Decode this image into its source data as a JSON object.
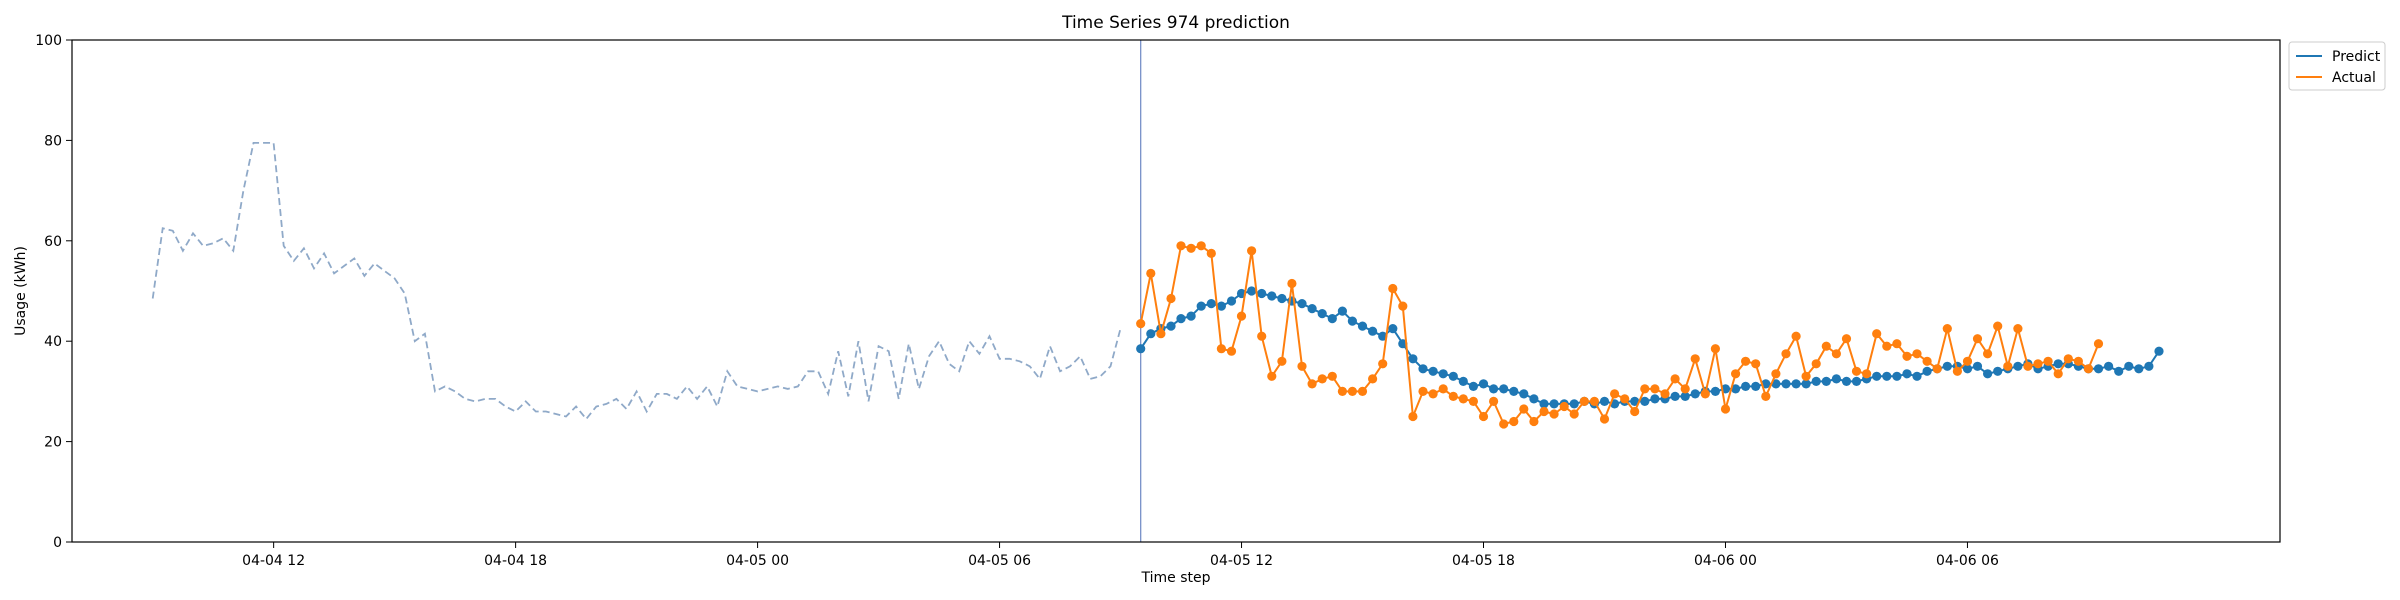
{
  "chart_data": {
    "type": "line",
    "title": "Time Series 974 prediction",
    "xlabel": "Time step",
    "ylabel": "Usage (kWh)",
    "ylim": [
      0,
      100
    ],
    "yticks": [
      0,
      20,
      40,
      60,
      80,
      100
    ],
    "xlim": [
      "2024-04-04 07:00",
      "2024-04-06 13:45"
    ],
    "xticks": [
      {
        "t": "2024-04-04 12:00",
        "label": "04-04 12"
      },
      {
        "t": "2024-04-04 18:00",
        "label": "04-04 18"
      },
      {
        "t": "2024-04-05 00:00",
        "label": "04-05 00"
      },
      {
        "t": "2024-04-05 06:00",
        "label": "04-05 06"
      },
      {
        "t": "2024-04-05 12:00",
        "label": "04-05 12"
      },
      {
        "t": "2024-04-05 18:00",
        "label": "04-05 18"
      },
      {
        "t": "2024-04-06 00:00",
        "label": "04-06 00"
      },
      {
        "t": "2024-04-06 06:00",
        "label": "04-06 06"
      }
    ],
    "forecast_start": "2024-04-05 09:30",
    "grid": false,
    "legend_position": "upper-right-outside",
    "history": {
      "start": "2024-04-04 09:00",
      "interval_minutes": 15,
      "color": "#8fa9c8",
      "style": "dashed",
      "values": [
        48.5,
        62.5,
        62,
        58,
        61.5,
        59,
        59.5,
        60.5,
        58,
        70,
        79.5,
        79.5,
        79.5,
        59,
        56,
        58.5,
        54.5,
        57.5,
        53.5,
        55,
        56.5,
        53,
        55.5,
        54,
        52.5,
        49.5,
        40,
        41.5,
        30,
        31,
        30,
        28.5,
        28,
        28.5,
        28.5,
        27,
        26,
        28,
        26,
        26,
        25.5,
        25,
        27,
        24.5,
        27,
        27.5,
        28.5,
        26.5,
        30,
        26,
        29.5,
        29.5,
        28.5,
        31,
        28.5,
        31,
        27,
        34,
        31,
        30.5,
        30,
        30.5,
        31,
        30.5,
        31,
        34,
        34,
        29.5,
        38,
        29,
        40,
        28,
        39,
        38,
        28.5,
        39.5,
        30.5,
        37,
        40,
        35.5,
        34,
        40,
        37.5,
        41,
        36.5,
        36.5,
        36,
        35,
        32.5,
        39,
        34,
        35,
        37,
        32.5,
        33,
        35,
        42.5
      ]
    },
    "series": [
      {
        "name": "Predict",
        "color": "#1f77b4",
        "start": "2024-04-05 09:30",
        "interval_minutes": 15,
        "values": [
          38.5,
          41.5,
          42.5,
          43,
          44.5,
          45,
          47,
          47.5,
          47,
          48,
          49.5,
          50,
          49.5,
          49,
          48.5,
          48,
          47.5,
          46.5,
          45.5,
          44.5,
          46,
          44,
          43,
          42,
          41,
          42.5,
          39.5,
          36.5,
          34.5,
          34,
          33.5,
          33,
          32,
          31,
          31.5,
          30.5,
          30.5,
          30,
          29.5,
          28.5,
          27.5,
          27.5,
          27.5,
          27.5,
          28,
          27.5,
          28,
          27.5,
          28,
          28,
          28,
          28.5,
          28.5,
          29,
          29,
          29.5,
          30,
          30,
          30.5,
          30.5,
          31,
          31,
          31.5,
          31.5,
          31.5,
          31.5,
          31.5,
          32,
          32,
          32.5,
          32,
          32,
          32.5,
          33,
          33,
          33,
          33.5,
          33,
          34,
          34.5,
          35,
          35,
          34.5,
          35,
          33.5,
          34,
          34.5,
          35,
          35.5,
          34.5,
          35,
          35.5,
          35.5,
          35,
          34.5,
          34.5,
          35,
          34,
          35,
          34.5,
          35,
          38
        ]
      },
      {
        "name": "Actual",
        "color": "#ff7f0e",
        "start": "2024-04-05 09:30",
        "interval_minutes": 15,
        "values": [
          43.5,
          53.5,
          41.5,
          48.5,
          59,
          58.5,
          59,
          57.5,
          38.5,
          38,
          45,
          58,
          41,
          33,
          36,
          51.5,
          35,
          31.5,
          32.5,
          33,
          30,
          30,
          30,
          32.5,
          35.5,
          50.5,
          47,
          25,
          30,
          29.5,
          30.5,
          29,
          28.5,
          28,
          25,
          28,
          23.5,
          24,
          26.5,
          24,
          26,
          25.5,
          27,
          25.5,
          28,
          28,
          24.5,
          29.5,
          28.5,
          26,
          30.5,
          30.5,
          29.5,
          32.5,
          30.5,
          36.5,
          29.5,
          38.5,
          26.5,
          33.5,
          36,
          35.5,
          29,
          33.5,
          37.5,
          41,
          33,
          35.5,
          39,
          37.5,
          40.5,
          34,
          33.5,
          41.5,
          39,
          39.5,
          37,
          37.5,
          36,
          34.5,
          42.5,
          34,
          36,
          40.5,
          37.5,
          43,
          35,
          42.5,
          35,
          35.5,
          36,
          33.5,
          36.5,
          36,
          34.5,
          39.5
        ]
      }
    ]
  }
}
